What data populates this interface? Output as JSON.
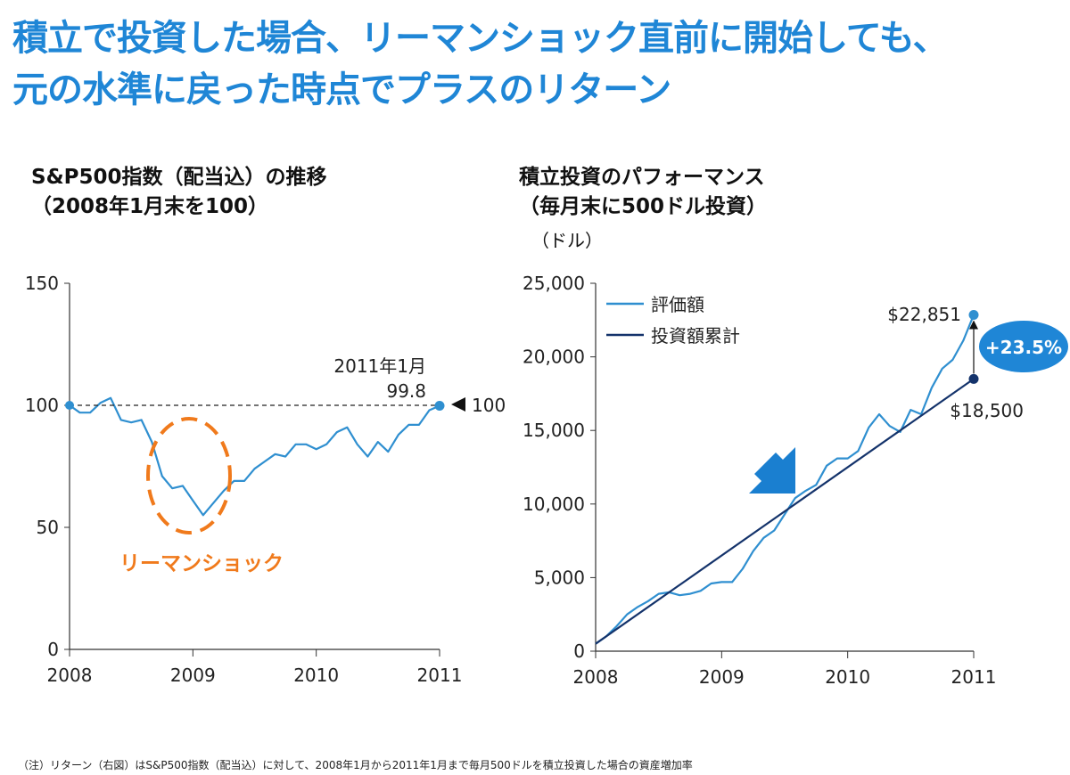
{
  "title": {
    "line1": "積立で投資した場合、リーマンショック直前に開始しても、",
    "line2": "元の水準に戻った時点でプラスのリターン"
  },
  "footnote": "（注）リターン（右図）はS&P500指数（配当込）に対して、2008年1月から2011年1月まで毎月500ドルを積立投資した場合の資産増加率",
  "colors": {
    "title": "#1f86d6",
    "line_light": "#2f8fd0",
    "line_dark": "#14336b",
    "highlight_orange": "#f07a1c",
    "badge": "#1f86d6"
  },
  "chart_data": [
    {
      "type": "line",
      "title_line1": "S&P500指数（配当込）の推移",
      "title_line2": "（2008年1月末を100）",
      "xlabel": "",
      "ylabel": "",
      "xlim": [
        2008,
        2011
      ],
      "ylim": [
        0,
        150
      ],
      "x_ticks": [
        "2008",
        "2009",
        "2010",
        "2011"
      ],
      "y_ticks": [
        "0",
        "50",
        "100",
        "150"
      ],
      "grid": false,
      "series": [
        {
          "x": [
            2008.0,
            2008.083,
            2008.167,
            2008.25,
            2008.333,
            2008.417,
            2008.5,
            2008.583,
            2008.667,
            2008.75,
            2008.833,
            2008.917,
            2009.0,
            2009.083,
            2009.167,
            2009.25,
            2009.333,
            2009.417,
            2009.5,
            2009.583,
            2009.667,
            2009.75,
            2009.833,
            2009.917,
            2010.0,
            2010.083,
            2010.167,
            2010.25,
            2010.333,
            2010.417,
            2010.5,
            2010.583,
            2010.667,
            2010.75,
            2010.833,
            2010.917,
            2011.0
          ],
          "values": [
            100,
            97,
            97,
            101,
            103,
            94,
            93,
            94,
            85,
            71,
            66,
            67,
            61,
            55,
            60,
            65,
            69,
            69,
            74,
            77,
            80,
            79,
            84,
            84,
            82,
            84,
            89,
            91,
            84,
            79,
            85,
            81,
            88,
            92,
            92,
            98,
            99.8
          ]
        }
      ],
      "reference_line": {
        "value": 100,
        "style": "dashed"
      },
      "endpoint_annotation": {
        "date_label": "2011年1月",
        "value_label": "99.8"
      },
      "reference_label": "100",
      "highlight_label": "リーマンショック"
    },
    {
      "type": "line",
      "title_line1": "積立投資のパフォーマンス",
      "title_line2": "（毎月末に500ドル投資）",
      "unit": "（ドル）",
      "xlabel": "",
      "ylabel": "",
      "xlim": [
        2008,
        2011
      ],
      "ylim": [
        0,
        25000
      ],
      "x_ticks": [
        "2008",
        "2009",
        "2010",
        "2011"
      ],
      "y_ticks": [
        "0",
        "5,000",
        "10,000",
        "15,000",
        "20,000",
        "25,000"
      ],
      "grid": false,
      "legend_position": "top-left",
      "series": [
        {
          "name": "評価額",
          "x": [
            2008.0,
            2008.083,
            2008.167,
            2008.25,
            2008.333,
            2008.417,
            2008.5,
            2008.583,
            2008.667,
            2008.75,
            2008.833,
            2008.917,
            2009.0,
            2009.083,
            2009.167,
            2009.25,
            2009.333,
            2009.417,
            2009.5,
            2009.583,
            2009.667,
            2009.75,
            2009.833,
            2009.917,
            2010.0,
            2010.083,
            2010.167,
            2010.25,
            2010.333,
            2010.417,
            2010.5,
            2010.583,
            2010.667,
            2010.75,
            2010.833,
            2010.917,
            2011.0
          ],
          "values": [
            500,
            1000,
            1700,
            2500,
            3000,
            3400,
            3900,
            4000,
            3800,
            3900,
            4100,
            4600,
            4700,
            4700,
            5600,
            6800,
            7700,
            8200,
            9300,
            10400,
            10900,
            11300,
            12600,
            13100,
            13100,
            13600,
            15200,
            16100,
            15300,
            14900,
            16400,
            16100,
            17900,
            19200,
            19800,
            21100,
            22851
          ]
        },
        {
          "name": "投資額累計",
          "x": [
            2008.0,
            2011.0
          ],
          "values": [
            500,
            18500
          ]
        }
      ],
      "end_labels": {
        "series1": "$22,851",
        "series2": "$18,500"
      },
      "return_badge": "+23.5%"
    }
  ]
}
